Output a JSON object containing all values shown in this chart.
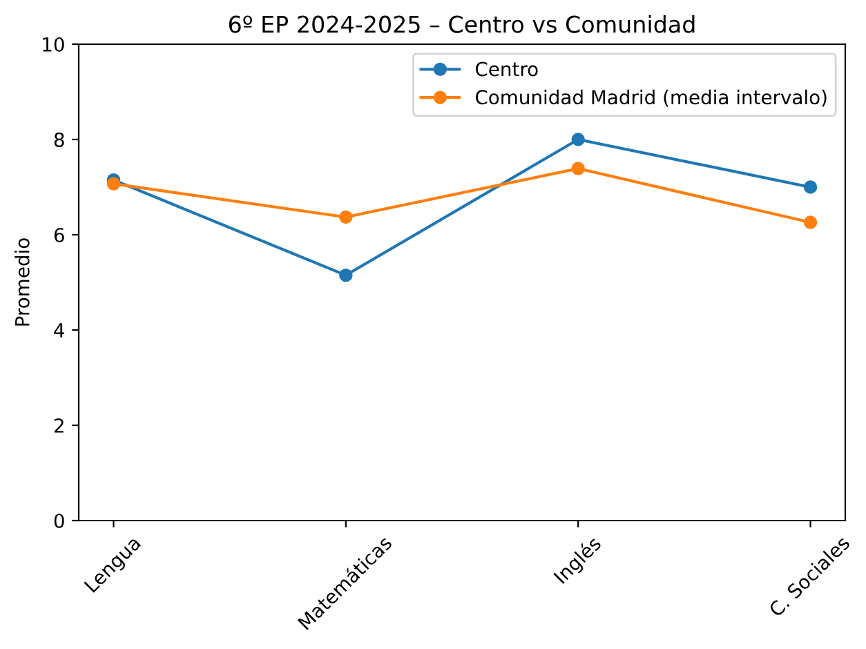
{
  "chart_data": {
    "type": "line",
    "title": "6º EP 2024-2025 – Centro vs Comunidad",
    "ylabel": "Promedio",
    "categories": [
      "Lengua",
      "Matemáticas",
      "Inglés",
      "C. Sociales"
    ],
    "series": [
      {
        "name": "Centro",
        "color": "#1f77b4",
        "values": [
          7.15,
          5.15,
          8.0,
          7.0
        ]
      },
      {
        "name": "Comunidad Madrid (media intervalo)",
        "color": "#ff7f0e",
        "values": [
          7.07,
          6.37,
          7.39,
          6.26
        ]
      }
    ],
    "ylim": [
      0,
      10
    ],
    "yticks": [
      0,
      2,
      4,
      6,
      8,
      10
    ],
    "grid": false,
    "legend": "top right",
    "marker": "circle",
    "line_style": "solid"
  }
}
